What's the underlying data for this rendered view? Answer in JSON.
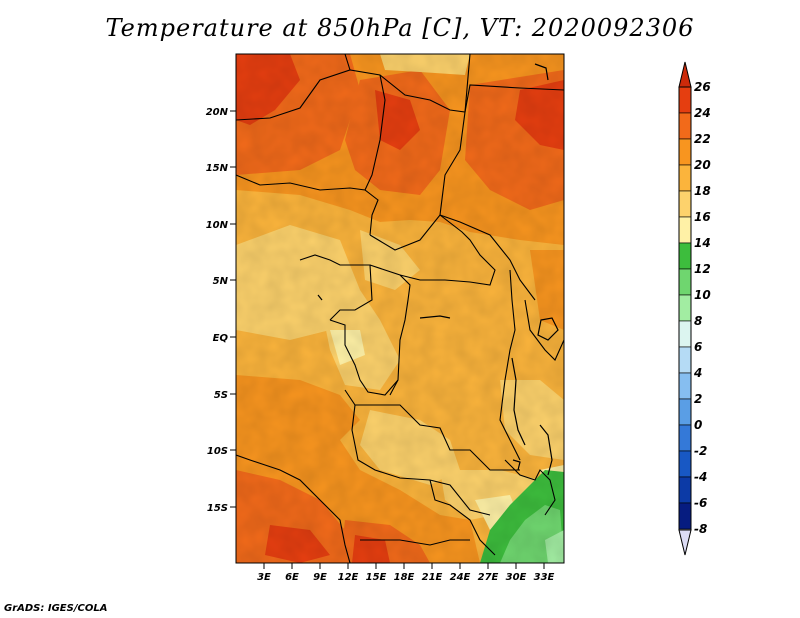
{
  "title": "Temperature at 850hPa [C], VT: 2020092306",
  "footer": "GrADS: IGES/COLA",
  "map": {
    "lat_labels": [
      "20N",
      "15N",
      "10N",
      "5N",
      "EQ",
      "5S",
      "10S",
      "15S"
    ],
    "lon_labels": [
      "3E",
      "6E",
      "9E",
      "12E",
      "15E",
      "18E",
      "21E",
      "24E",
      "27E",
      "30E",
      "33E"
    ]
  },
  "colorbar": {
    "labels": [
      "26",
      "24",
      "22",
      "20",
      "18",
      "16",
      "14",
      "12",
      "10",
      "8",
      "6",
      "4",
      "2",
      "0",
      "-2",
      "-4",
      "-6",
      "-8"
    ],
    "colors": [
      "#cc2a0a",
      "#e53e10",
      "#f26a1a",
      "#f8951f",
      "#fbb43c",
      "#fdd26c",
      "#fff1a6",
      "#3dbd3d",
      "#6fd66f",
      "#a2eda2",
      "#dcf5f0",
      "#b5dbf5",
      "#86bef0",
      "#5a9ee5",
      "#3479d8",
      "#1858c4",
      "#0c3aa6",
      "#061c80",
      "#020a54"
    ],
    "over_color": "#cc2a0a",
    "under_color": "#dcdcf5"
  }
}
